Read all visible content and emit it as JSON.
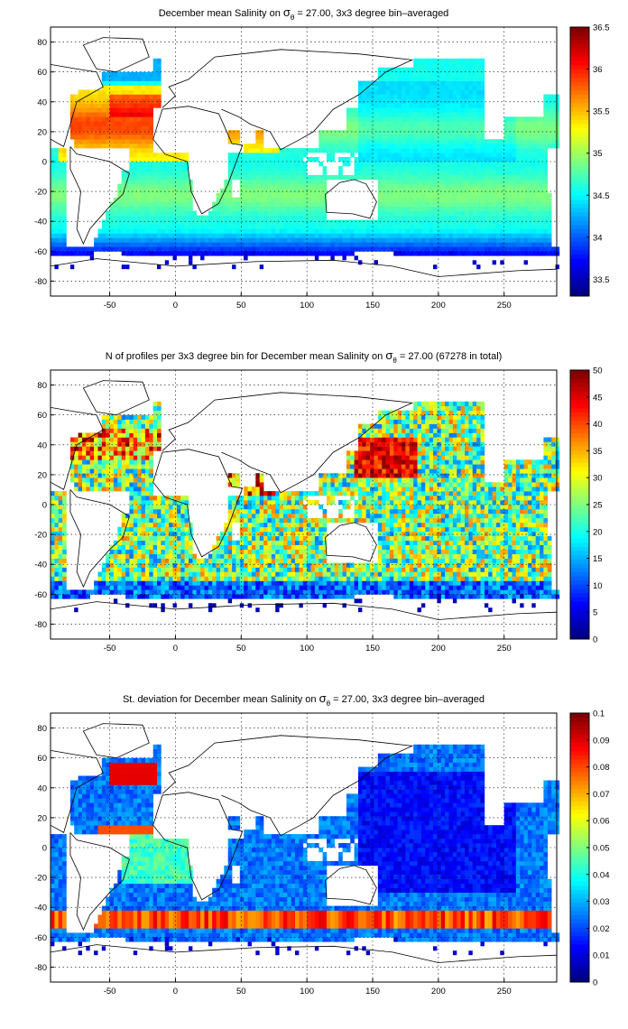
{
  "chart_data": [
    {
      "type": "heatmap",
      "title_parts": [
        "December mean Salinity on ",
        "σ",
        "θ",
        " = 27.00, 3x3 degree bin–averaged"
      ],
      "colorbar": {
        "min": 33.3,
        "max": 36.5,
        "ticks": [
          "33.5",
          "34",
          "34.5",
          "35",
          "35.5",
          "36",
          "36.5"
        ],
        "tick_values": [
          33.5,
          34,
          34.5,
          35,
          35.5,
          36,
          36.5
        ]
      },
      "xlim": [
        -95,
        290
      ],
      "ylim": [
        -90,
        90
      ],
      "xticks": [
        "-50",
        "0",
        "50",
        "100",
        "150",
        "200",
        "250"
      ],
      "xtick_values": [
        -50,
        0,
        50,
        100,
        150,
        200,
        250
      ],
      "yticks": [
        "80",
        "60",
        "40",
        "20",
        "0",
        "-20",
        "-40",
        "-60",
        "-80"
      ],
      "ytick_values": [
        80,
        60,
        40,
        20,
        0,
        -20,
        -40,
        -60,
        -80
      ],
      "grid": true,
      "field": "salinity"
    },
    {
      "type": "heatmap",
      "title_parts": [
        "N of profiles per 3x3 degree bin for December mean Salinity on ",
        "σ",
        "θ",
        " = 27.00 (67278 in total)"
      ],
      "colorbar": {
        "min": 0,
        "max": 50,
        "ticks": [
          "0",
          "5",
          "10",
          "15",
          "20",
          "25",
          "30",
          "35",
          "40",
          "45",
          "50"
        ],
        "tick_values": [
          0,
          5,
          10,
          15,
          20,
          25,
          30,
          35,
          40,
          45,
          50
        ]
      },
      "xlim": [
        -95,
        290
      ],
      "ylim": [
        -90,
        90
      ],
      "xticks": [
        "-50",
        "0",
        "50",
        "100",
        "150",
        "200",
        "250"
      ],
      "xtick_values": [
        -50,
        0,
        50,
        100,
        150,
        200,
        250
      ],
      "yticks": [
        "80",
        "60",
        "40",
        "20",
        "0",
        "-20",
        "-40",
        "-60",
        "-80"
      ],
      "ytick_values": [
        80,
        60,
        40,
        20,
        0,
        -20,
        -40,
        -60,
        -80
      ],
      "grid": true,
      "field": "count"
    },
    {
      "type": "heatmap",
      "title_parts": [
        "St. deviation for December mean Salinity on ",
        "σ",
        "θ",
        " = 27.00, 3x3 degree bin–averaged"
      ],
      "colorbar": {
        "min": 0,
        "max": 0.1,
        "ticks": [
          "0",
          "0.01",
          "0.02",
          "0.03",
          "0.04",
          "0.05",
          "0.06",
          "0.07",
          "0.08",
          "0.09",
          "0.1"
        ],
        "tick_values": [
          0,
          0.01,
          0.02,
          0.03,
          0.04,
          0.05,
          0.06,
          0.07,
          0.08,
          0.09,
          0.1
        ]
      },
      "xlim": [
        -95,
        290
      ],
      "ylim": [
        -90,
        90
      ],
      "xticks": [
        "-50",
        "0",
        "50",
        "100",
        "150",
        "200",
        "250"
      ],
      "xtick_values": [
        -50,
        0,
        50,
        100,
        150,
        200,
        250
      ],
      "yticks": [
        "80",
        "60",
        "40",
        "20",
        "0",
        "-20",
        "-40",
        "-60",
        "-80"
      ],
      "ytick_values": [
        80,
        60,
        40,
        20,
        0,
        -20,
        -40,
        -60,
        -80
      ],
      "grid": true,
      "field": "std"
    }
  ],
  "colormap": "jet"
}
